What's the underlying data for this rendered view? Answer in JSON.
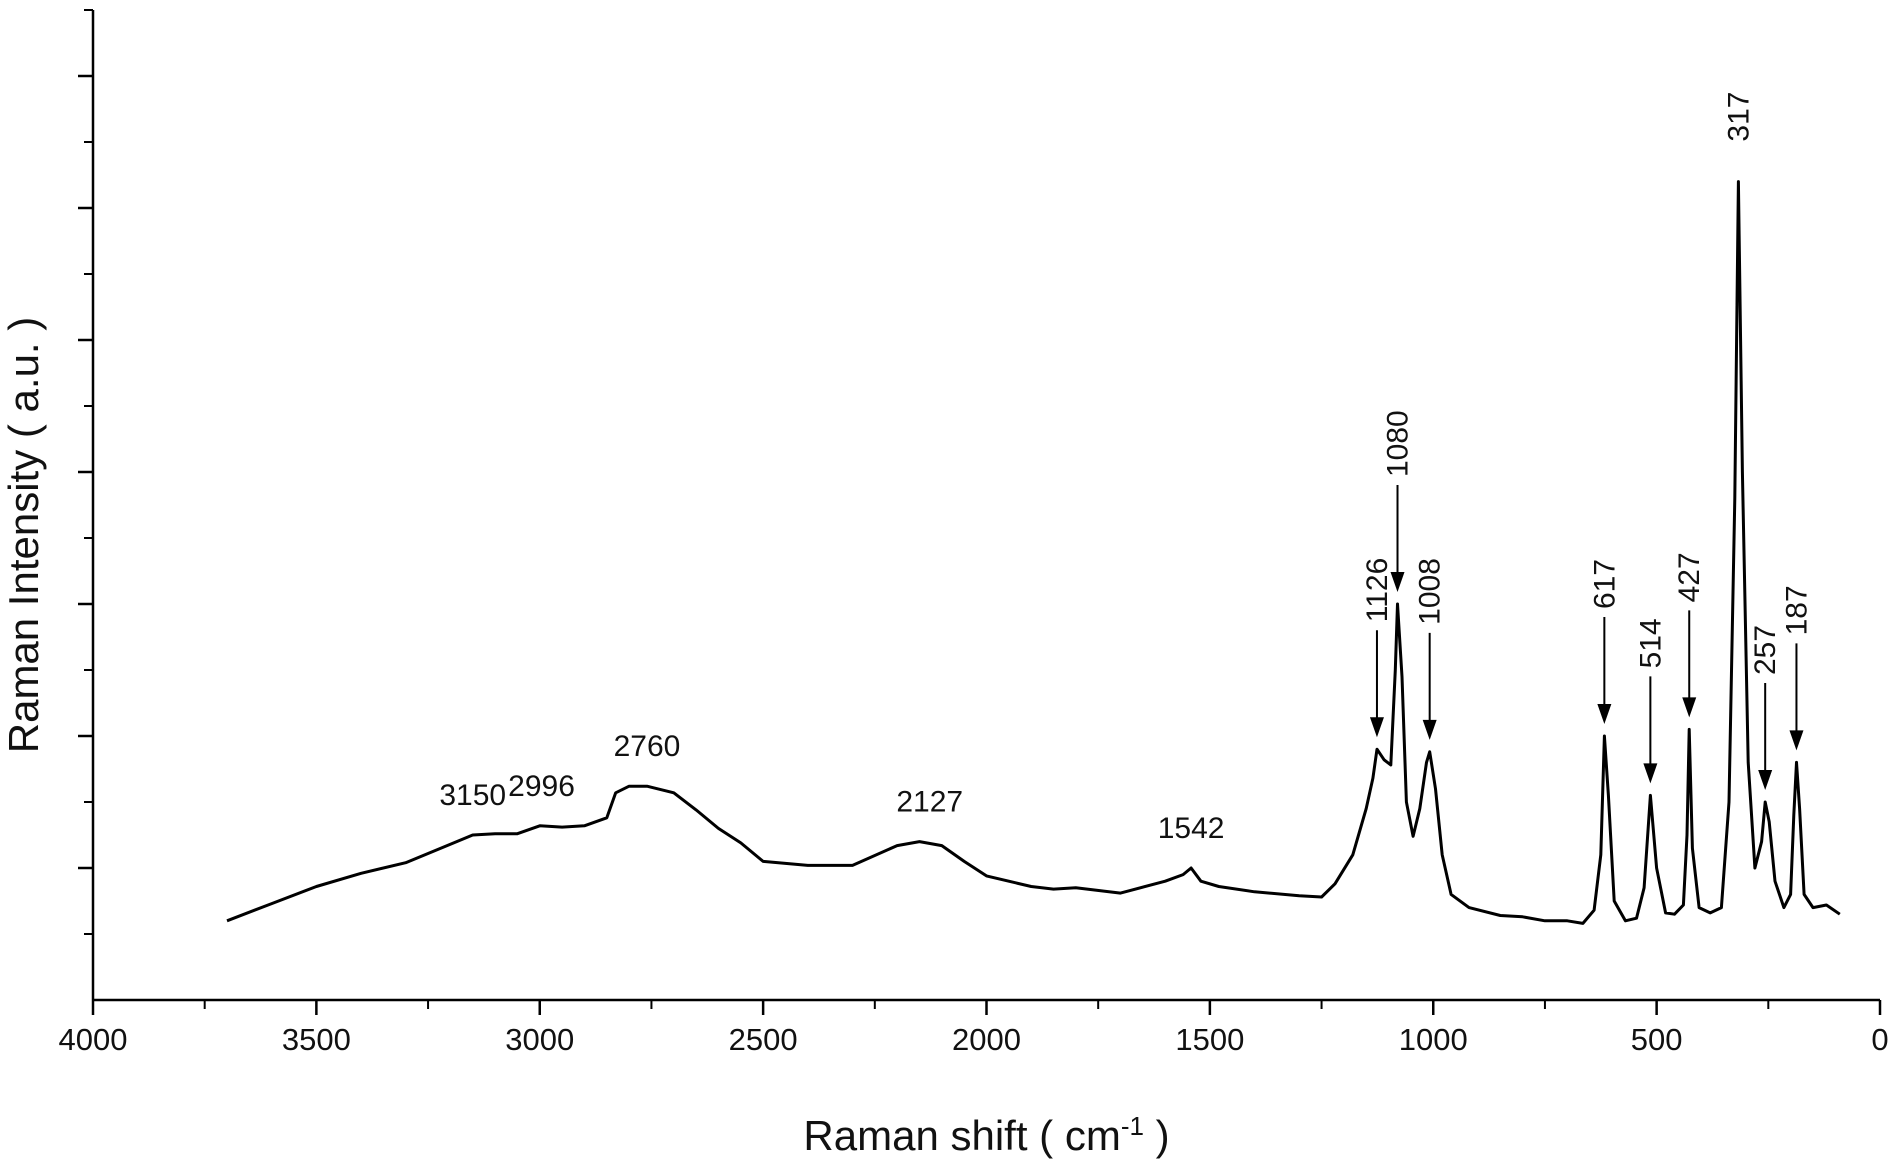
{
  "chart_data": {
    "type": "line",
    "xlabel": "Raman shift ( cm",
    "xlabel_superscript": "-1",
    "xlabel_suffix": " )",
    "ylabel": "Raman Intensity ( a.u. )",
    "xlim": [
      4000,
      0
    ],
    "x_reversed": true,
    "ylim": [
      0,
      7.5
    ],
    "y_tick_labels_shown": false,
    "y_major_ticks": [
      1,
      2,
      3,
      4,
      5,
      6,
      7
    ],
    "y_minor_ticks": [
      0.5,
      1.5,
      2.5,
      3.5,
      4.5,
      5.5,
      6.5,
      7.5
    ],
    "x_ticks": [
      {
        "value": 4000,
        "label": "4000"
      },
      {
        "value": 3500,
        "label": "3500"
      },
      {
        "value": 3000,
        "label": "3000"
      },
      {
        "value": 2500,
        "label": "2500"
      },
      {
        "value": 2000,
        "label": "2000"
      },
      {
        "value": 1500,
        "label": "1500"
      },
      {
        "value": 1000,
        "label": "1000"
      },
      {
        "value": 500,
        "label": "500"
      },
      {
        "value": 0,
        "label": "0"
      }
    ],
    "x_minor_ticks": [
      3750,
      3250,
      2750,
      2250,
      1750,
      1250,
      750,
      250
    ],
    "grid": false,
    "line_color": "#000000",
    "series": [
      {
        "x": [
          3700,
          3600,
          3500,
          3400,
          3300,
          3200,
          3150,
          3100,
          3050,
          3000,
          2950,
          2900,
          2850,
          2830,
          2800,
          2760,
          2700,
          2650,
          2600,
          2550,
          2500,
          2400,
          2300,
          2200,
          2150,
          2100,
          2050,
          2000,
          1950,
          1900,
          1850,
          1800,
          1700,
          1600,
          1560,
          1542,
          1520,
          1480,
          1400,
          1300,
          1250,
          1220,
          1180,
          1150,
          1135,
          1126,
          1110,
          1095,
          1085,
          1080,
          1070,
          1060,
          1045,
          1030,
          1015,
          1008,
          995,
          980,
          960,
          920,
          850,
          800,
          750,
          700,
          665,
          640,
          625,
          617,
          608,
          595,
          570,
          545,
          528,
          514,
          500,
          480,
          460,
          440,
          432,
          427,
          420,
          405,
          380,
          355,
          338,
          325,
          317,
          308,
          295,
          280,
          265,
          257,
          248,
          235,
          215,
          200,
          193,
          187,
          180,
          170,
          150,
          120,
          90
        ],
        "y": [
          0.6,
          0.73,
          0.86,
          0.96,
          1.04,
          1.18,
          1.25,
          1.26,
          1.26,
          1.32,
          1.31,
          1.32,
          1.38,
          1.57,
          1.62,
          1.62,
          1.57,
          1.44,
          1.3,
          1.19,
          1.05,
          1.02,
          1.02,
          1.17,
          1.2,
          1.17,
          1.05,
          0.94,
          0.9,
          0.86,
          0.84,
          0.85,
          0.81,
          0.9,
          0.95,
          1.0,
          0.9,
          0.86,
          0.82,
          0.79,
          0.78,
          0.88,
          1.1,
          1.45,
          1.68,
          1.9,
          1.82,
          1.78,
          2.5,
          3.0,
          2.45,
          1.5,
          1.24,
          1.45,
          1.8,
          1.88,
          1.6,
          1.1,
          0.8,
          0.7,
          0.64,
          0.63,
          0.6,
          0.6,
          0.58,
          0.68,
          1.1,
          2.0,
          1.55,
          0.75,
          0.6,
          0.62,
          0.85,
          1.55,
          1.0,
          0.66,
          0.65,
          0.72,
          1.25,
          2.05,
          1.15,
          0.7,
          0.66,
          0.7,
          1.5,
          3.8,
          6.2,
          4.0,
          1.8,
          1.0,
          1.2,
          1.5,
          1.35,
          0.9,
          0.7,
          0.8,
          1.4,
          1.8,
          1.45,
          0.8,
          0.7,
          0.72,
          0.65
        ]
      }
    ],
    "annotations": [
      {
        "text": "3150",
        "x": 3150,
        "y": 1.25,
        "rotated": false,
        "arrow": false
      },
      {
        "text": "2996",
        "x": 2996,
        "y": 1.32,
        "rotated": false,
        "arrow": false
      },
      {
        "text": "2760",
        "x": 2760,
        "y": 1.62,
        "rotated": false,
        "arrow": false
      },
      {
        "text": "2127",
        "x": 2127,
        "y": 1.2,
        "rotated": false,
        "arrow": false
      },
      {
        "text": "1542",
        "x": 1542,
        "y": 1.0,
        "rotated": false,
        "arrow": false
      },
      {
        "text": "1126",
        "x": 1126,
        "y": 1.9,
        "rotated": true,
        "arrow": true
      },
      {
        "text": "1080",
        "x": 1080,
        "y": 3.0,
        "rotated": true,
        "arrow": true
      },
      {
        "text": "1008",
        "x": 1008,
        "y": 1.88,
        "rotated": true,
        "arrow": true
      },
      {
        "text": "617",
        "x": 617,
        "y": 2.0,
        "rotated": true,
        "arrow": true
      },
      {
        "text": "514",
        "x": 514,
        "y": 1.55,
        "rotated": true,
        "arrow": true
      },
      {
        "text": "427",
        "x": 427,
        "y": 2.05,
        "rotated": true,
        "arrow": true
      },
      {
        "text": "317",
        "x": 317,
        "y": 6.2,
        "rotated": true,
        "arrow": false
      },
      {
        "text": "257",
        "x": 257,
        "y": 1.5,
        "rotated": true,
        "arrow": true
      },
      {
        "text": "187",
        "x": 187,
        "y": 1.8,
        "rotated": true,
        "arrow": true
      }
    ]
  }
}
